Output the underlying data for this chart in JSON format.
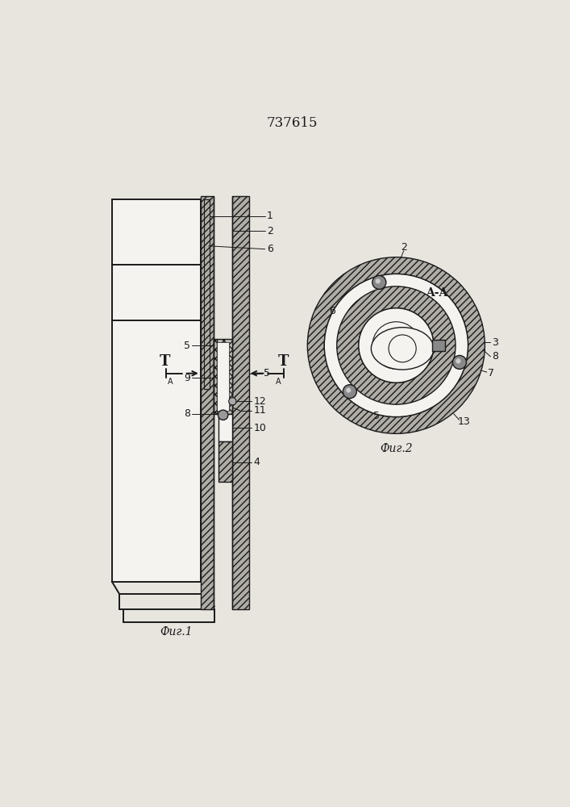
{
  "title": "737615",
  "fig1_label": "Фиг.1",
  "fig2_label": "Фиг.2",
  "section_label": "A-A",
  "bg_color": "#e8e4de",
  "lc": "#1a1a1a",
  "hatch_fc": "#b0aca6",
  "white": "#f5f3f0"
}
